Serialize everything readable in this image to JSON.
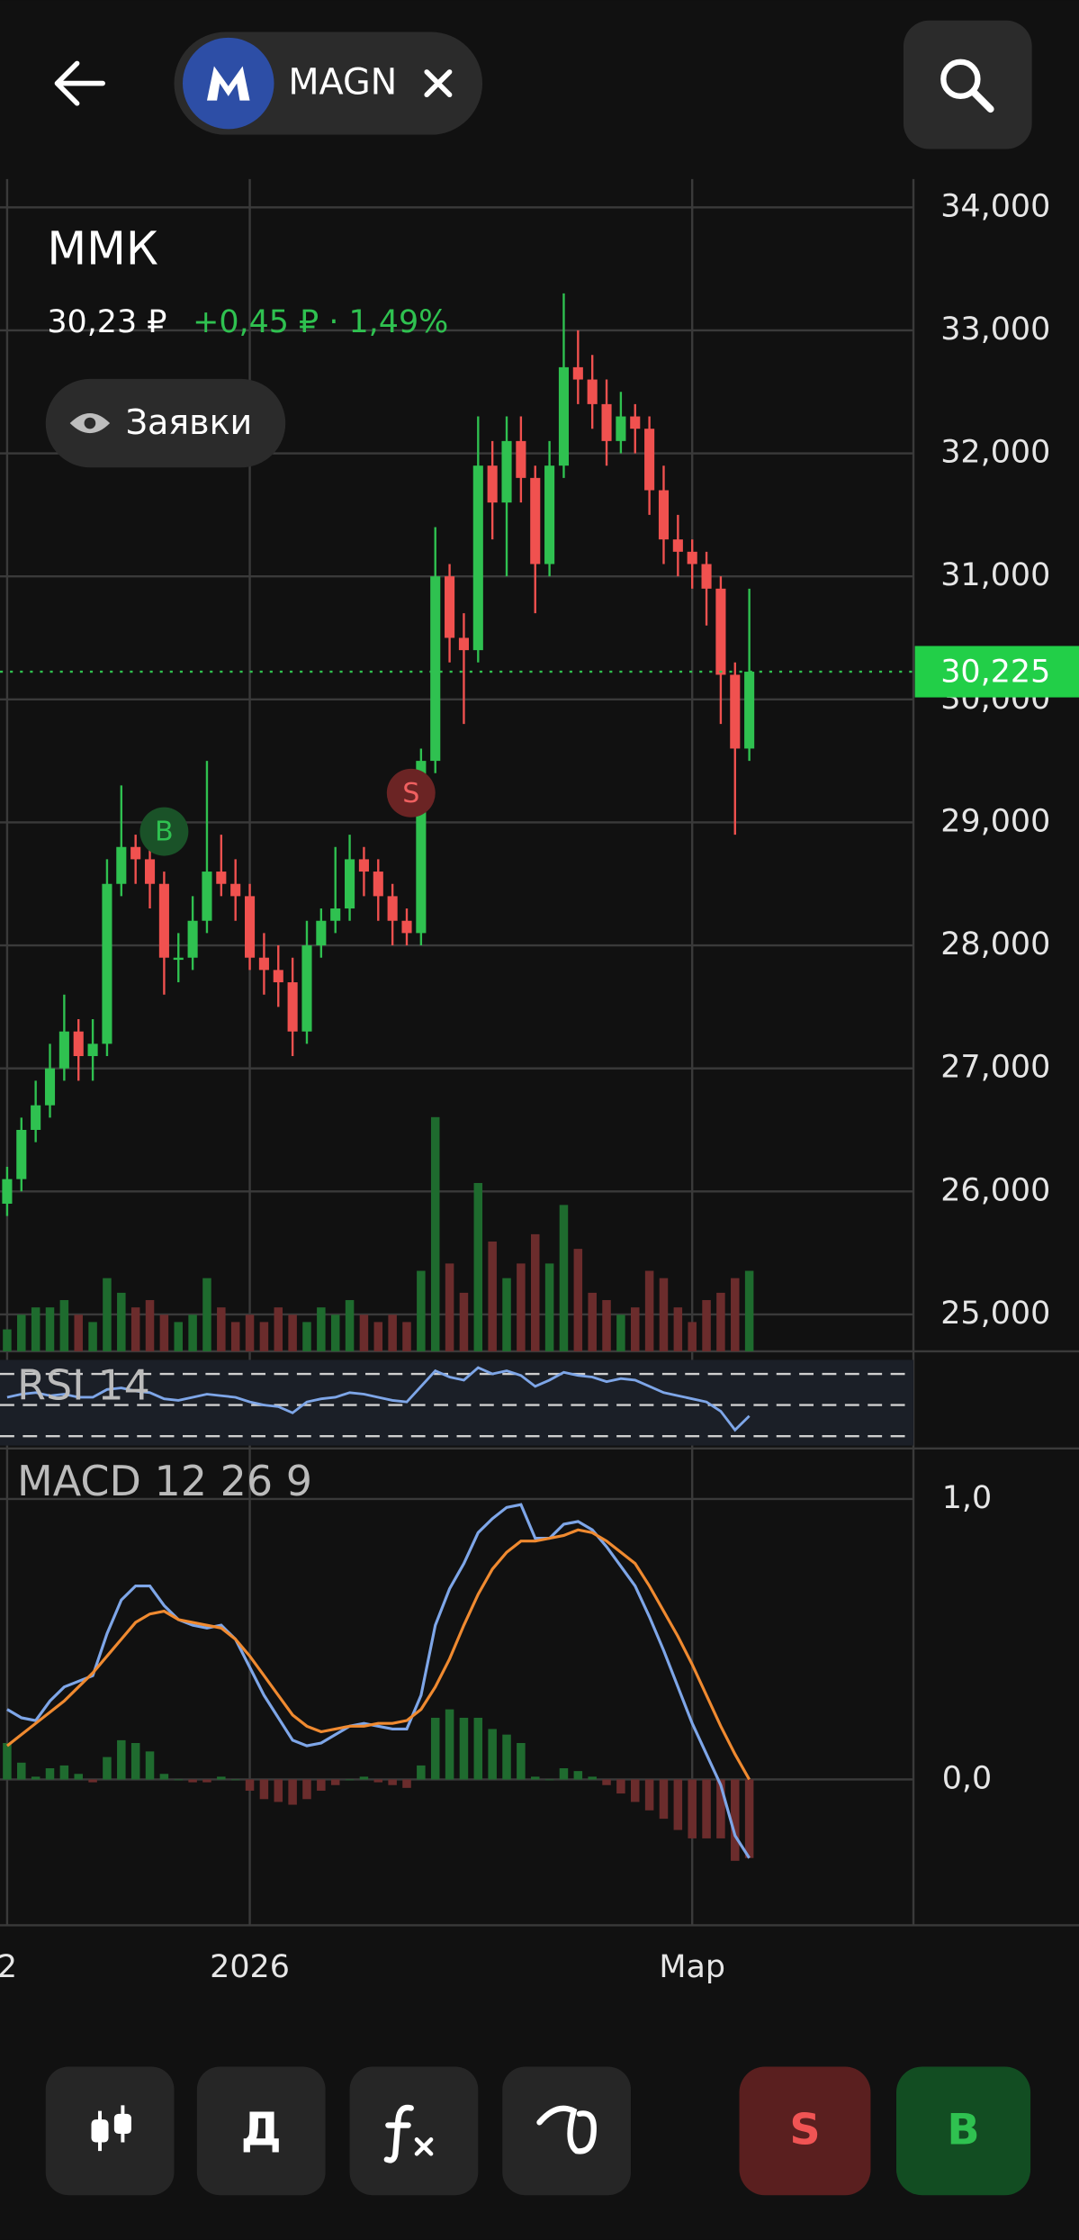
{
  "header": {
    "ticker": "MAGN"
  },
  "quote": {
    "price": "30,23 ₽",
    "change": "+0,45 ₽ · 1,49%"
  },
  "orders_button": "Заявки",
  "toolbar": {
    "period": "Д",
    "sell": "S",
    "buy": "B"
  },
  "chart_data": {
    "type": "candlestick",
    "title": "ММК",
    "categories": [
      "2",
      null,
      null,
      null,
      null,
      null,
      null,
      null,
      null,
      null,
      null,
      null,
      null,
      null,
      null,
      null,
      null,
      "2026",
      null,
      null,
      null,
      null,
      null,
      null,
      null,
      null,
      null,
      null,
      null,
      null,
      null,
      null,
      null,
      null,
      null,
      null,
      null,
      null,
      null,
      null,
      null,
      null,
      null,
      null,
      null,
      null,
      null,
      null,
      "Мар",
      null,
      null,
      null,
      null
    ],
    "ohlc": [
      [
        25900,
        26200,
        25800,
        26100
      ],
      [
        26100,
        26600,
        26000,
        26500
      ],
      [
        26500,
        26900,
        26400,
        26700
      ],
      [
        26700,
        27200,
        26600,
        27000
      ],
      [
        27000,
        27600,
        26900,
        27300
      ],
      [
        27300,
        27400,
        26900,
        27100
      ],
      [
        27100,
        27400,
        26900,
        27200
      ],
      [
        27200,
        28700,
        27100,
        28500
      ],
      [
        28500,
        29300,
        28400,
        28800
      ],
      [
        28800,
        28900,
        28500,
        28700
      ],
      [
        28700,
        28800,
        28300,
        28500
      ],
      [
        28500,
        28600,
        27600,
        27900
      ],
      [
        27900,
        28100,
        27700,
        27900
      ],
      [
        27900,
        28400,
        27800,
        28200
      ],
      [
        28200,
        29500,
        28100,
        28600
      ],
      [
        28600,
        28900,
        28400,
        28500
      ],
      [
        28500,
        28700,
        28200,
        28400
      ],
      [
        28400,
        28500,
        27800,
        27900
      ],
      [
        27900,
        28100,
        27600,
        27800
      ],
      [
        27800,
        28000,
        27500,
        27700
      ],
      [
        27700,
        27900,
        27100,
        27300
      ],
      [
        27300,
        28200,
        27200,
        28000
      ],
      [
        28000,
        28300,
        27900,
        28200
      ],
      [
        28200,
        28800,
        28100,
        28300
      ],
      [
        28300,
        28900,
        28200,
        28700
      ],
      [
        28700,
        28800,
        28400,
        28600
      ],
      [
        28600,
        28700,
        28200,
        28400
      ],
      [
        28400,
        28500,
        28000,
        28200
      ],
      [
        28200,
        28300,
        28000,
        28100
      ],
      [
        28100,
        29600,
        28000,
        29500
      ],
      [
        29500,
        31400,
        29400,
        31000
      ],
      [
        31000,
        31100,
        30300,
        30500
      ],
      [
        30500,
        30700,
        29800,
        30400
      ],
      [
        30400,
        32300,
        30300,
        31900
      ],
      [
        31900,
        32100,
        31300,
        31600
      ],
      [
        31600,
        32300,
        31000,
        32100
      ],
      [
        32100,
        32300,
        31600,
        31800
      ],
      [
        31800,
        31900,
        30700,
        31100
      ],
      [
        31100,
        32100,
        31000,
        31900
      ],
      [
        31900,
        33300,
        31800,
        32700
      ],
      [
        32700,
        33000,
        32400,
        32600
      ],
      [
        32600,
        32800,
        32200,
        32400
      ],
      [
        32400,
        32600,
        31900,
        32100
      ],
      [
        32100,
        32500,
        32000,
        32300
      ],
      [
        32300,
        32400,
        32000,
        32200
      ],
      [
        32200,
        32300,
        31500,
        31700
      ],
      [
        31700,
        31900,
        31100,
        31300
      ],
      [
        31300,
        31500,
        31000,
        31200
      ],
      [
        31200,
        31300,
        30900,
        31100
      ],
      [
        31100,
        31200,
        30600,
        30900
      ],
      [
        30900,
        31000,
        29800,
        30200
      ],
      [
        30200,
        30300,
        28900,
        29600
      ],
      [
        29600,
        30900,
        29500,
        30225
      ]
    ],
    "volume": [
      15,
      25,
      30,
      30,
      35,
      25,
      20,
      50,
      40,
      30,
      35,
      25,
      20,
      25,
      50,
      30,
      20,
      25,
      20,
      30,
      25,
      20,
      30,
      25,
      35,
      25,
      20,
      25,
      20,
      55,
      160,
      60,
      40,
      115,
      75,
      50,
      60,
      80,
      60,
      100,
      70,
      40,
      35,
      25,
      30,
      55,
      50,
      30,
      20,
      35,
      40,
      50,
      55
    ],
    "ylim": [
      24700,
      34230
    ],
    "yticks": [
      {
        "value": 34000,
        "label": "34,000"
      },
      {
        "value": 33000,
        "label": "33,000"
      },
      {
        "value": 32000,
        "label": "32,000"
      },
      {
        "value": 31000,
        "label": "31,000"
      },
      {
        "value": 30000,
        "label": "30,000"
      },
      {
        "value": 29000,
        "label": "29,000"
      },
      {
        "value": 28000,
        "label": "28,000"
      },
      {
        "value": 27000,
        "label": "27,000"
      },
      {
        "value": 26000,
        "label": "26,000"
      },
      {
        "value": 25000,
        "label": "25,000"
      }
    ],
    "current_price": {
      "value": 30225,
      "label": "30,225"
    },
    "up_color": "#2fc150",
    "down_color": "#f0514f",
    "signals": [
      "B",
      "S"
    ],
    "rsi": {
      "name": "RSI 14",
      "color": "#7ea6e8",
      "ylim": [
        24,
        79
      ],
      "levels": [
        30,
        50,
        70
      ],
      "values": [
        55,
        57,
        58,
        56,
        57,
        55,
        55,
        60,
        61,
        59,
        58,
        54,
        53,
        55,
        57,
        56,
        55,
        52,
        50,
        49,
        45,
        52,
        54,
        55,
        58,
        57,
        55,
        53,
        52,
        62,
        72,
        68,
        66,
        74,
        70,
        72,
        69,
        62,
        66,
        71,
        69,
        68,
        65,
        67,
        66,
        62,
        58,
        56,
        54,
        52,
        46,
        34,
        43
      ]
    },
    "macd": {
      "name": "MACD 12 26 9",
      "ylim": [
        -0.52,
        1.16
      ],
      "yticks": [
        {
          "value": 1,
          "label": "1,0"
        },
        {
          "value": 0,
          "label": "0,0"
        }
      ],
      "series": [
        {
          "color": "#7ea6e8",
          "values": [
            0.25,
            0.22,
            0.21,
            0.28,
            0.33,
            0.35,
            0.37,
            0.52,
            0.64,
            0.69,
            0.69,
            0.62,
            0.57,
            0.55,
            0.54,
            0.55,
            0.5,
            0.4,
            0.3,
            0.22,
            0.14,
            0.12,
            0.13,
            0.16,
            0.19,
            0.2,
            0.19,
            0.18,
            0.18,
            0.3,
            0.55,
            0.68,
            0.77,
            0.88,
            0.93,
            0.97,
            0.98,
            0.86,
            0.86,
            0.91,
            0.92,
            0.89,
            0.83,
            0.76,
            0.69,
            0.58,
            0.46,
            0.33,
            0.2,
            0.09,
            -0.02,
            -0.2,
            -0.28
          ]
        },
        {
          "color": "#f08a30",
          "values": [
            0.12,
            0.16,
            0.2,
            0.24,
            0.28,
            0.33,
            0.38,
            0.44,
            0.5,
            0.56,
            0.59,
            0.6,
            0.57,
            0.56,
            0.55,
            0.54,
            0.5,
            0.44,
            0.37,
            0.3,
            0.23,
            0.19,
            0.17,
            0.18,
            0.19,
            0.19,
            0.2,
            0.2,
            0.21,
            0.25,
            0.33,
            0.43,
            0.55,
            0.66,
            0.75,
            0.81,
            0.85,
            0.85,
            0.86,
            0.87,
            0.89,
            0.88,
            0.85,
            0.81,
            0.77,
            0.69,
            0.6,
            0.51,
            0.41,
            0.3,
            0.19,
            0.09,
            0
          ]
        }
      ],
      "histogram": [
        0.13,
        0.06,
        0.01,
        0.04,
        0.05,
        0.02,
        -0.01,
        0.08,
        0.14,
        0.13,
        0.1,
        0.02,
        0,
        -0.01,
        -0.01,
        0.01,
        0,
        -0.04,
        -0.07,
        -0.08,
        -0.09,
        -0.07,
        -0.04,
        -0.02,
        0,
        0.01,
        -0.01,
        -0.02,
        -0.03,
        0.05,
        0.22,
        0.25,
        0.22,
        0.22,
        0.18,
        0.16,
        0.13,
        0.01,
        0,
        0.04,
        0.03,
        0.01,
        -0.02,
        -0.05,
        -0.08,
        -0.11,
        -0.14,
        -0.18,
        -0.21,
        -0.21,
        -0.21,
        -0.29,
        -0.28
      ]
    }
  }
}
